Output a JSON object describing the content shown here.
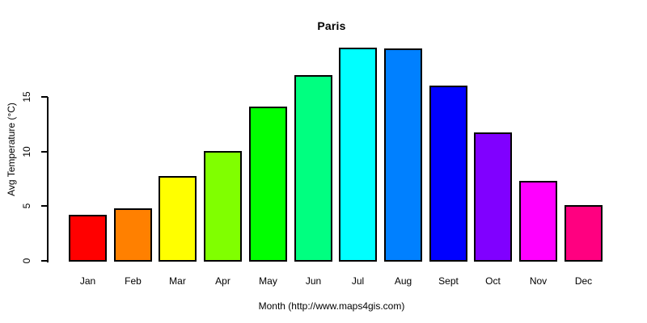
{
  "chart_data": {
    "type": "bar",
    "title": "Paris",
    "xlabel": "Month (http://www.maps4gis.com)",
    "ylabel": "Avg Temperature (°C)",
    "categories": [
      "Jan",
      "Feb",
      "Mar",
      "Apr",
      "May",
      "Jun",
      "Jul",
      "Aug",
      "Sept",
      "Oct",
      "Nov",
      "Dec"
    ],
    "values": [
      4.3,
      4.9,
      7.8,
      10.1,
      14.2,
      17.1,
      19.6,
      19.5,
      16.1,
      11.8,
      7.4,
      5.2
    ],
    "bar_colors": [
      "#FF0000",
      "#FF8000",
      "#FFFF00",
      "#80FF00",
      "#00FF00",
      "#00FF80",
      "#00FFFF",
      "#0080FF",
      "#0000FF",
      "#8000FF",
      "#FF00FF",
      "#FF0080"
    ],
    "yticks": [
      0,
      5,
      10,
      15
    ],
    "ylim": [
      0,
      20
    ],
    "grid": false,
    "legend_position": "none",
    "background_color": "#FFFFFF",
    "axis_color": "#000000",
    "text_color": "#000000",
    "bar_border_color": "#000000"
  }
}
